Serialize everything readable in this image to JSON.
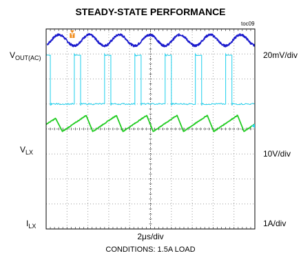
{
  "title": "STEADY-STATE PERFORMANCE",
  "toc_ref": "toc09",
  "channels": {
    "vout": {
      "main": "V",
      "sub": "OUT(AC)",
      "scale": "20mV/div"
    },
    "vlx": {
      "main": "V",
      "sub": "LX",
      "scale": "10V/div"
    },
    "ilx": {
      "main": "I",
      "sub": "LX",
      "scale": "1A/div"
    }
  },
  "timebase": "2μs/div",
  "conditions": "CONDITIONS:  1.5A LOAD",
  "colors": {
    "vout": "#1a1acd",
    "vlx": "#2fd3ee",
    "ilx": "#22cc22",
    "trigger": "#f08a16",
    "grid": "#9a9a9a",
    "frame": "#000000"
  },
  "chart_data": {
    "type": "line",
    "title": "STEADY-STATE PERFORMANCE",
    "xlabel": "2μs/div",
    "grid": true,
    "divisions": {
      "x": 10,
      "y": 8
    },
    "xlim": [
      0,
      20
    ],
    "series": [
      {
        "name": "VOUT(AC)",
        "scale": "20mV/div",
        "shape": "ripple",
        "period_div": 1.45,
        "offset_div": 3.55,
        "amplitude_div": 0.22,
        "x_start_div": 0.05
      },
      {
        "name": "VLX",
        "scale": "10V/div",
        "shape": "pulse",
        "period_div": 1.45,
        "high_div": 2.95,
        "low_div": 1.0,
        "first_edge_div": 0.2,
        "width_div": 0.3,
        "start_high": true
      },
      {
        "name": "ILX",
        "scale": "1A/div",
        "shape": "sawtooth",
        "period_div": 1.45,
        "top_div": 0.55,
        "bottom_div": -0.1,
        "peak_div": 0.48,
        "start_level_div": 0.2
      }
    ]
  }
}
